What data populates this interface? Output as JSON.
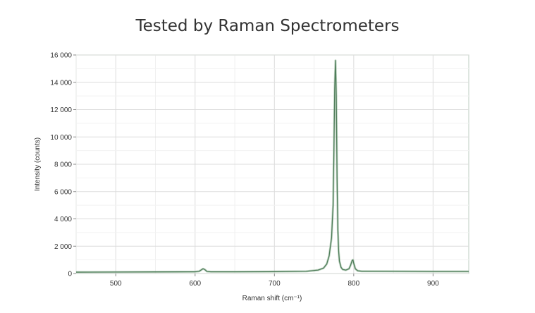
{
  "header": {
    "title": "Tested by Raman Spectrometers"
  },
  "chart_data": {
    "type": "line",
    "title": "Tested by Raman Spectrometers",
    "xlabel": "Raman shift (cm⁻¹)",
    "ylabel": "Intensity (counts)",
    "xlim": [
      450,
      945
    ],
    "ylim": [
      0,
      16000
    ],
    "x_ticks": [
      500,
      600,
      700,
      800,
      900
    ],
    "x_tick_labels": [
      "500",
      "600",
      "700",
      "800",
      "900"
    ],
    "y_ticks": [
      0,
      2000,
      4000,
      6000,
      8000,
      10000,
      12000,
      14000,
      16000
    ],
    "y_tick_labels": [
      "0",
      "2 000",
      "4 000",
      "6 000",
      "8 000",
      "10 000",
      "12 000",
      "14 000",
      "16 000"
    ],
    "grid": true,
    "series": [
      {
        "x": [
          450,
          500,
          550,
          600,
          605,
          610,
          612,
          615,
          620,
          650,
          700,
          740,
          755,
          762,
          766,
          769,
          772,
          774,
          775,
          776,
          777,
          778,
          779,
          780,
          781,
          782,
          784,
          786,
          790,
          794,
          796,
          798,
          799,
          800,
          802,
          805,
          810,
          850,
          900,
          945
        ],
        "y": [
          100,
          110,
          120,
          130,
          160,
          350,
          300,
          150,
          130,
          130,
          140,
          160,
          250,
          400,
          700,
          1300,
          2600,
          5000,
          9000,
          13500,
          15600,
          13000,
          7000,
          3200,
          1600,
          900,
          450,
          300,
          250,
          350,
          600,
          950,
          1000,
          750,
          350,
          200,
          170,
          160,
          150,
          150
        ]
      }
    ]
  }
}
